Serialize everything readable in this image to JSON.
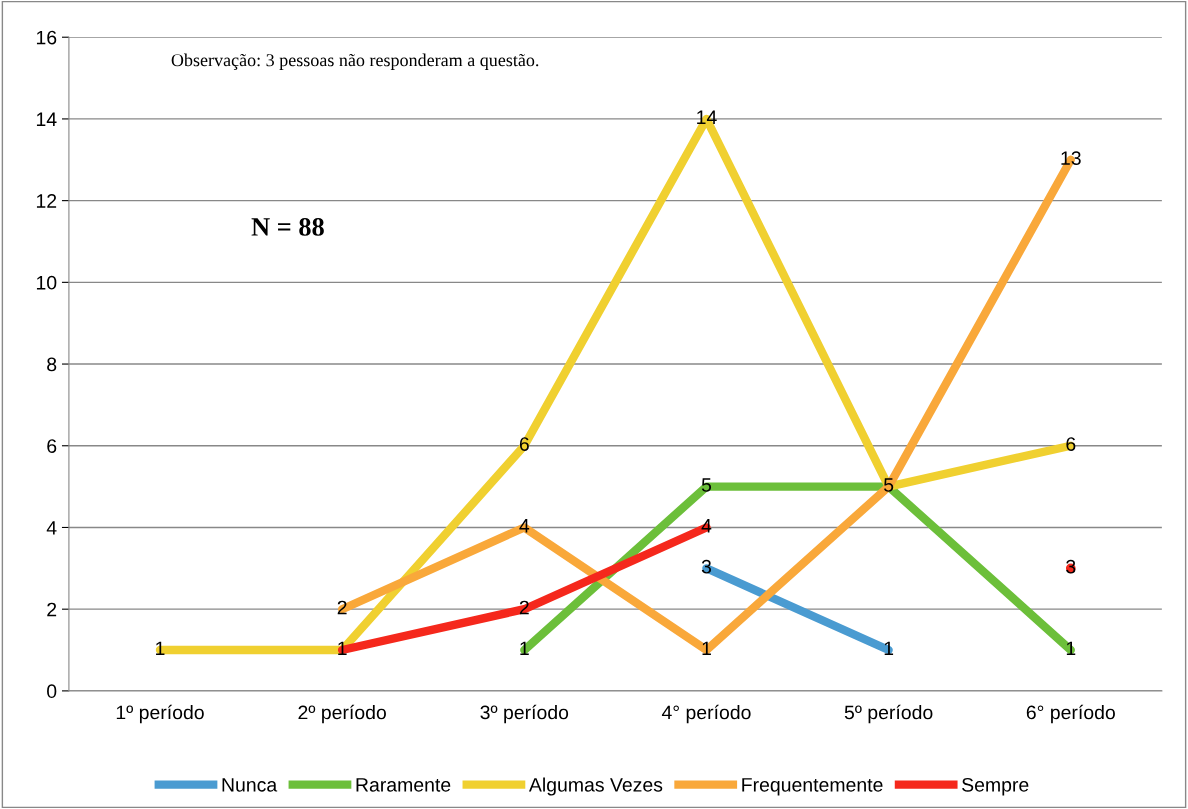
{
  "chart_data": {
    "type": "line",
    "categories": [
      "1º período",
      "2º período",
      "3º período",
      "4° período",
      "5º período",
      "6° período"
    ],
    "series": [
      {
        "name": "Nunca",
        "color": "#4a9bd1",
        "values": [
          null,
          null,
          null,
          3,
          1,
          null
        ]
      },
      {
        "name": "Raramente",
        "color": "#6cbf3a",
        "values": [
          null,
          null,
          1,
          5,
          5,
          1
        ]
      },
      {
        "name": "Algumas Vezes",
        "color": "#f0d030",
        "values": [
          1,
          1,
          6,
          14,
          5,
          6
        ],
        "value_labels": [
          "1",
          "1",
          "6",
          "14",
          null,
          "6"
        ]
      },
      {
        "name": "Frequentemente",
        "color": "#f9a83a",
        "values": [
          null,
          2,
          4,
          1,
          5,
          13
        ],
        "value_labels": [
          null,
          "2",
          "4",
          "1",
          null,
          "13"
        ]
      },
      {
        "name": "Sempre",
        "color": "#f5281c",
        "values": [
          null,
          1,
          2,
          4,
          null,
          3
        ],
        "value_labels": [
          null,
          null,
          "2",
          "4",
          null,
          "3"
        ]
      }
    ],
    "ylim": [
      0,
      16
    ],
    "yticks": [
      0,
      2,
      4,
      6,
      8,
      10,
      12,
      14,
      16
    ],
    "grid": "y",
    "legend": "bottom",
    "data_labels": true,
    "marker": "none",
    "line_style": "solid",
    "annotations": [
      "Observação: 3 pessoas não responderam a questão.",
      "N = 88"
    ]
  }
}
